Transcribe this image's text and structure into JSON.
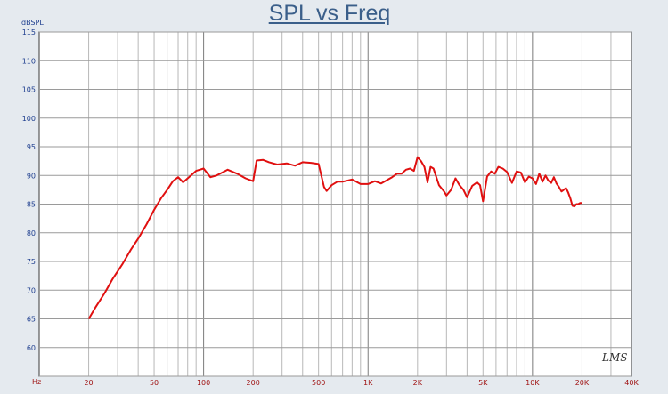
{
  "chart_data": {
    "type": "line",
    "title": "SPL vs Freq",
    "ylabel": "dBSPL",
    "y_unit_label": "Hz",
    "xscale": "log",
    "xlim": [
      10,
      40000
    ],
    "ylim": [
      55,
      115
    ],
    "y_ticks": [
      115,
      110,
      105,
      100,
      95,
      90,
      85,
      80,
      75,
      70,
      65,
      60
    ],
    "x_tick_labels": [
      {
        "value": 20,
        "label": "20"
      },
      {
        "value": 50,
        "label": "50"
      },
      {
        "value": 100,
        "label": "100"
      },
      {
        "value": 200,
        "label": "200"
      },
      {
        "value": 500,
        "label": "500"
      },
      {
        "value": 1000,
        "label": "1K"
      },
      {
        "value": 2000,
        "label": "2K"
      },
      {
        "value": 5000,
        "label": "5K"
      },
      {
        "value": 10000,
        "label": "10K"
      },
      {
        "value": 20000,
        "label": "20K"
      },
      {
        "value": 40000,
        "label": "40K"
      }
    ],
    "grid": true,
    "line_color": "#e01010",
    "series": [
      {
        "x": [
          20,
          22,
          25,
          28,
          32,
          36,
          40,
          45,
          50,
          55,
          60,
          65,
          70,
          75,
          80,
          90,
          100,
          110,
          120,
          140,
          160,
          180,
          200,
          210,
          230,
          250,
          280,
          320,
          360,
          400,
          450,
          500,
          540,
          560,
          600,
          650,
          700,
          800,
          900,
          1000,
          1100,
          1200,
          1400,
          1500,
          1600,
          1700,
          1800,
          1900,
          2000,
          2100,
          2200,
          2300,
          2400,
          2500,
          2700,
          2900,
          3000,
          3200,
          3400,
          3600,
          3800,
          4000,
          4300,
          4600,
          4800,
          5000,
          5300,
          5600,
          5900,
          6200,
          6600,
          7000,
          7500,
          8000,
          8500,
          9000,
          9500,
          10000,
          10500,
          11000,
          11500,
          12000,
          12500,
          13000,
          13500,
          14000,
          14500,
          15000,
          15500,
          16000,
          16500,
          17000,
          17500,
          18000,
          18500,
          19000,
          19500,
          20000
        ],
        "y": [
          65,
          67,
          69.5,
          72,
          74.5,
          77,
          79,
          81.5,
          84,
          86,
          87.5,
          89,
          89.7,
          88.8,
          89.5,
          90.8,
          91.2,
          89.7,
          90,
          91,
          90.3,
          89.5,
          89,
          92.6,
          92.7,
          92.3,
          91.9,
          92.1,
          91.7,
          92.3,
          92.2,
          92,
          88,
          87.3,
          88.3,
          88.9,
          88.9,
          89.3,
          88.5,
          88.5,
          89,
          88.6,
          89.7,
          90.3,
          90.3,
          91,
          91.2,
          90.8,
          93.2,
          92.5,
          91.5,
          88.8,
          91.5,
          91.2,
          88.3,
          87.2,
          86.5,
          87.5,
          89.5,
          88.3,
          87.5,
          86.2,
          88.2,
          88.8,
          88.3,
          85.5,
          89.8,
          90.7,
          90.3,
          91.5,
          91.2,
          90.6,
          88.7,
          90.7,
          90.5,
          88.8,
          89.8,
          89.5,
          88.5,
          90.3,
          88.9,
          90,
          89.1,
          88.7,
          89.7,
          88.6,
          88,
          87.2,
          87.5,
          87.8,
          87,
          86,
          84.7,
          84.6,
          85,
          85,
          85.2,
          85.2
        ]
      }
    ]
  },
  "watermark": "LMS"
}
